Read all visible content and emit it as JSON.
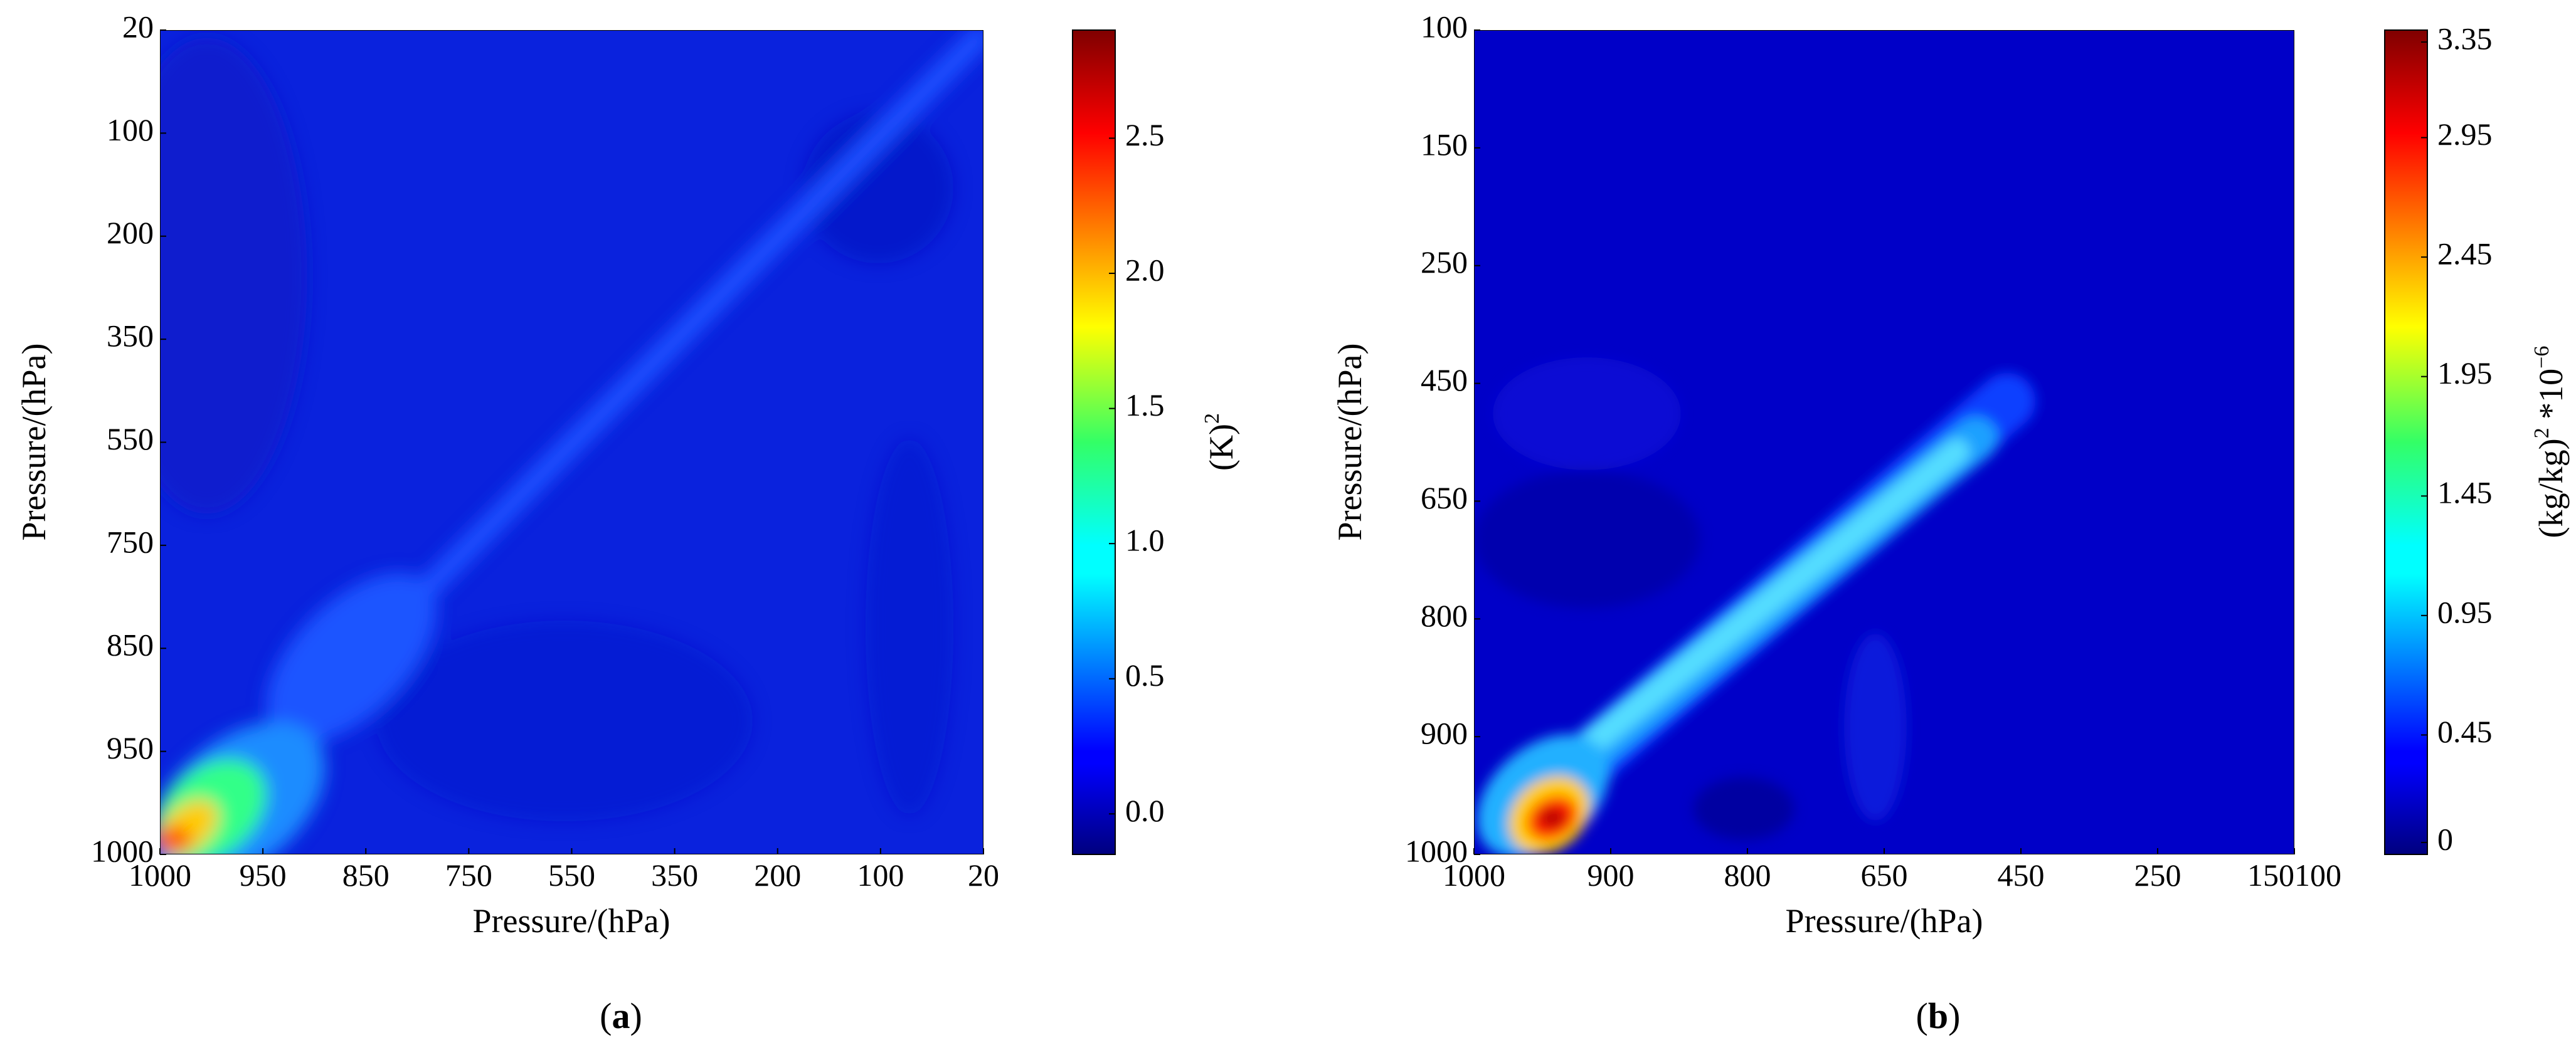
{
  "chart_data": [
    {
      "type": "heatmap",
      "panel": "a",
      "panel_label": {
        "open": "(",
        "letter": "a",
        "close": ")"
      },
      "xlabel": "Pressure/(hPa)",
      "ylabel": "Pressure/(hPa)",
      "x_ticks": [
        "1000",
        "950",
        "850",
        "750",
        "550",
        "350",
        "200",
        "100",
        "20"
      ],
      "y_ticks": [
        "20",
        "100",
        "200",
        "350",
        "550",
        "750",
        "850",
        "950",
        "1000"
      ],
      "colorbar": {
        "label_base": "(K)",
        "label_sup": "2",
        "ticks": [
          "2.5",
          "2.0",
          "1.5",
          "1.0",
          "0.5",
          "0.0"
        ],
        "tick_values": [
          2.5,
          2.0,
          1.5,
          1.0,
          0.5,
          0.0
        ],
        "range": [
          -0.15,
          2.9
        ],
        "colormap": "jet"
      },
      "description_of_field": "background error covariance of temperature; maximum near 1000 hPa diagonal, weak diagonal band up to 20 hPa"
    },
    {
      "type": "heatmap",
      "panel": "b",
      "panel_label": {
        "open": "(",
        "letter": "b",
        "close": ")"
      },
      "xlabel": "Pressure/(hPa)",
      "ylabel": "Pressure/(hPa)",
      "x_ticks": [
        "1000",
        "900",
        "800",
        "650",
        "450",
        "250",
        "150100"
      ],
      "y_ticks": [
        "100",
        "150",
        "250",
        "450",
        "650",
        "800",
        "900",
        "1000"
      ],
      "colorbar": {
        "label_base": "(kg/kg)",
        "label_sup": "2",
        "label_tail": " *10",
        "label_tail_sup": "−6",
        "ticks": [
          "3.35",
          "2.95",
          "2.45",
          "1.95",
          "1.45",
          "0.95",
          "0.45",
          "0"
        ],
        "tick_values": [
          3.35,
          2.95,
          2.45,
          1.95,
          1.45,
          0.95,
          0.45,
          0
        ],
        "range": [
          -0.05,
          3.4
        ],
        "colormap": "jet"
      },
      "description_of_field": "background error covariance of specific humidity; maximum near 1000 hPa, diagonal band up to ~450 hPa"
    }
  ]
}
